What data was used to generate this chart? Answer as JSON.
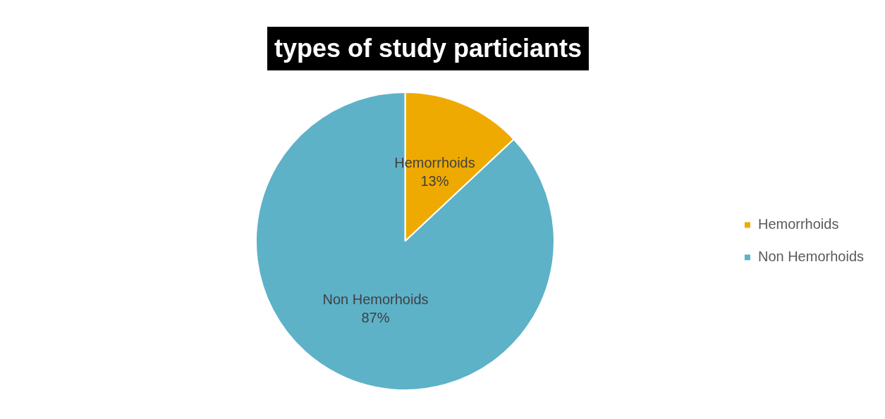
{
  "chart_data": {
    "type": "pie",
    "title": "types of study particiants",
    "categories": [
      "Hemorrhoids",
      "Non Hemorhoids"
    ],
    "values": [
      13,
      87
    ],
    "colors": [
      "#eeaa00",
      "#5db2c8"
    ],
    "value_labels": [
      "13%",
      "87%"
    ],
    "legend": "right"
  }
}
